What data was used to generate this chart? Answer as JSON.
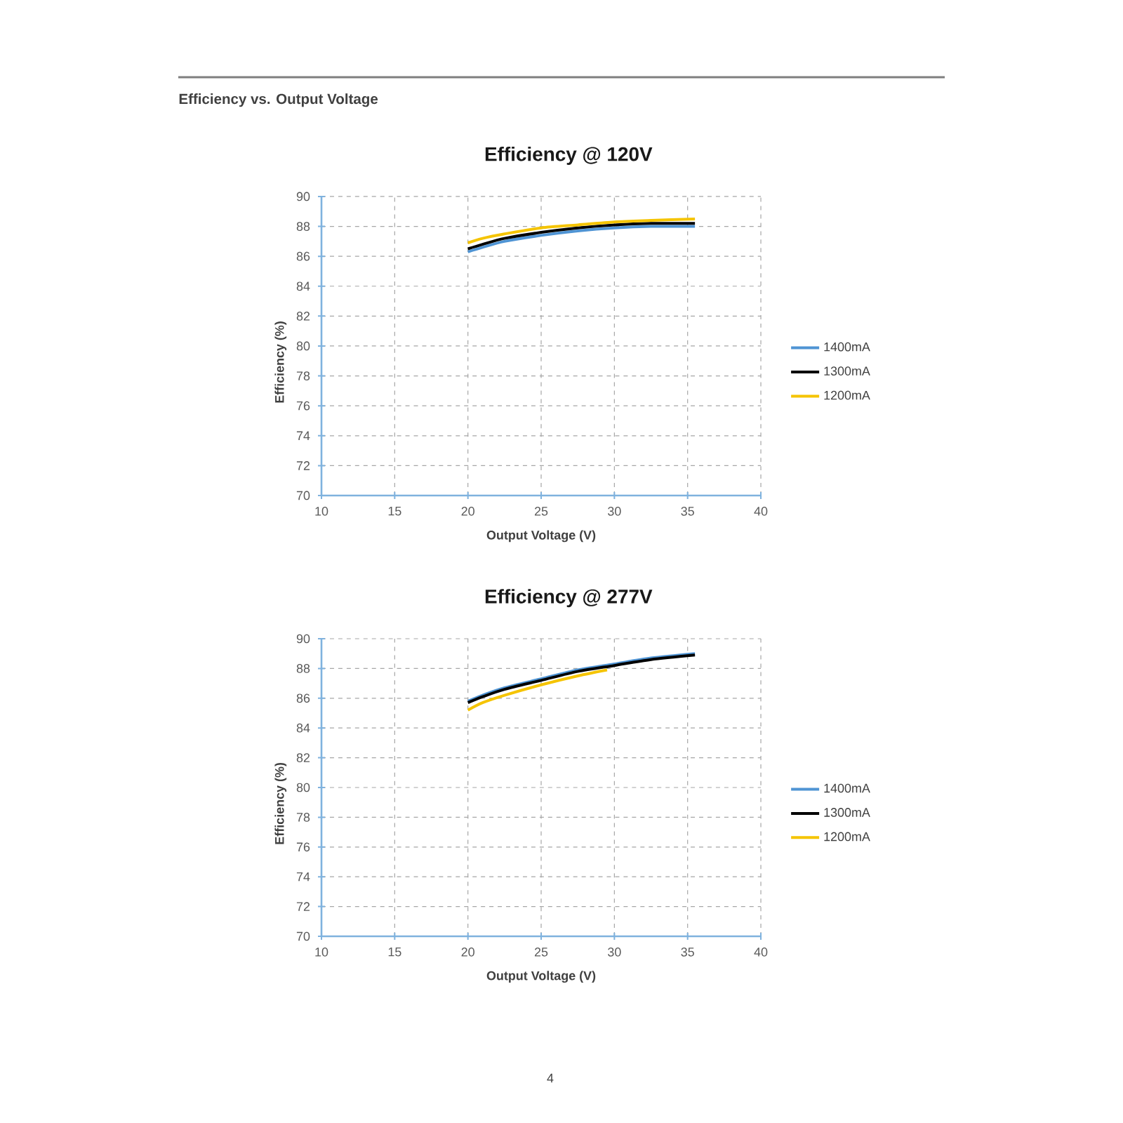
{
  "chart_data": [
    {
      "type": "line",
      "title": "Efficiency @ 120V",
      "xlabel": "Output Voltage (V)",
      "ylabel": "Efficiency (%)",
      "annotations": [
        "Efficiency vs. Output Voltage"
      ],
      "xlim": [
        10,
        40
      ],
      "ylim": [
        70,
        90
      ],
      "xticks": [
        10,
        15,
        20,
        25,
        30,
        35,
        40
      ],
      "yticks": [
        70,
        72,
        74,
        76,
        78,
        80,
        82,
        84,
        86,
        88,
        90
      ],
      "grid": true,
      "legend": "right",
      "series": [
        {
          "name": "1400mA",
          "color": "#4f94d4",
          "x": [
            20,
            21,
            22.5,
            25,
            27.5,
            30,
            32.5,
            35.5
          ],
          "values": [
            86.3,
            86.6,
            87.0,
            87.4,
            87.7,
            87.9,
            88.0,
            88.0
          ]
        },
        {
          "name": "1300mA",
          "color": "#000000",
          "x": [
            20,
            21,
            22.5,
            25,
            27.5,
            30,
            32.5,
            35.5
          ],
          "values": [
            86.5,
            86.8,
            87.2,
            87.6,
            87.9,
            88.1,
            88.2,
            88.2
          ]
        },
        {
          "name": "1200mA",
          "color": "#f5c400",
          "x": [
            20,
            21,
            22.5,
            25,
            27.5,
            30,
            32.5,
            35.5
          ],
          "values": [
            86.9,
            87.2,
            87.5,
            87.9,
            88.1,
            88.3,
            88.4,
            88.5
          ]
        }
      ]
    },
    {
      "type": "line",
      "title": "Efficiency @ 277V",
      "xlabel": "Output Voltage (V)",
      "ylabel": "Efficiency (%)",
      "annotations": [
        "4"
      ],
      "xlim": [
        10,
        40
      ],
      "ylim": [
        70,
        90
      ],
      "xticks": [
        10,
        15,
        20,
        25,
        30,
        35,
        40
      ],
      "yticks": [
        70,
        72,
        74,
        76,
        78,
        80,
        82,
        84,
        86,
        88,
        90
      ],
      "grid": true,
      "legend": "right",
      "series": [
        {
          "name": "1400mA",
          "color": "#4f94d4",
          "x": [
            20,
            21,
            22.5,
            25,
            27.5,
            30,
            32.5,
            35.5
          ],
          "values": [
            85.8,
            86.2,
            86.7,
            87.3,
            87.9,
            88.3,
            88.7,
            89.0
          ]
        },
        {
          "name": "1300mA",
          "color": "#000000",
          "x": [
            20,
            21,
            22.5,
            25,
            27.5,
            30,
            32.5,
            35.5
          ],
          "values": [
            85.7,
            86.1,
            86.6,
            87.2,
            87.8,
            88.2,
            88.6,
            88.9
          ]
        },
        {
          "name": "1200mA",
          "color": "#f5c400",
          "x": [
            20,
            21,
            22.5,
            25,
            27.5,
            29.5
          ],
          "values": [
            85.2,
            85.7,
            86.2,
            86.9,
            87.5,
            87.9
          ]
        }
      ]
    }
  ]
}
